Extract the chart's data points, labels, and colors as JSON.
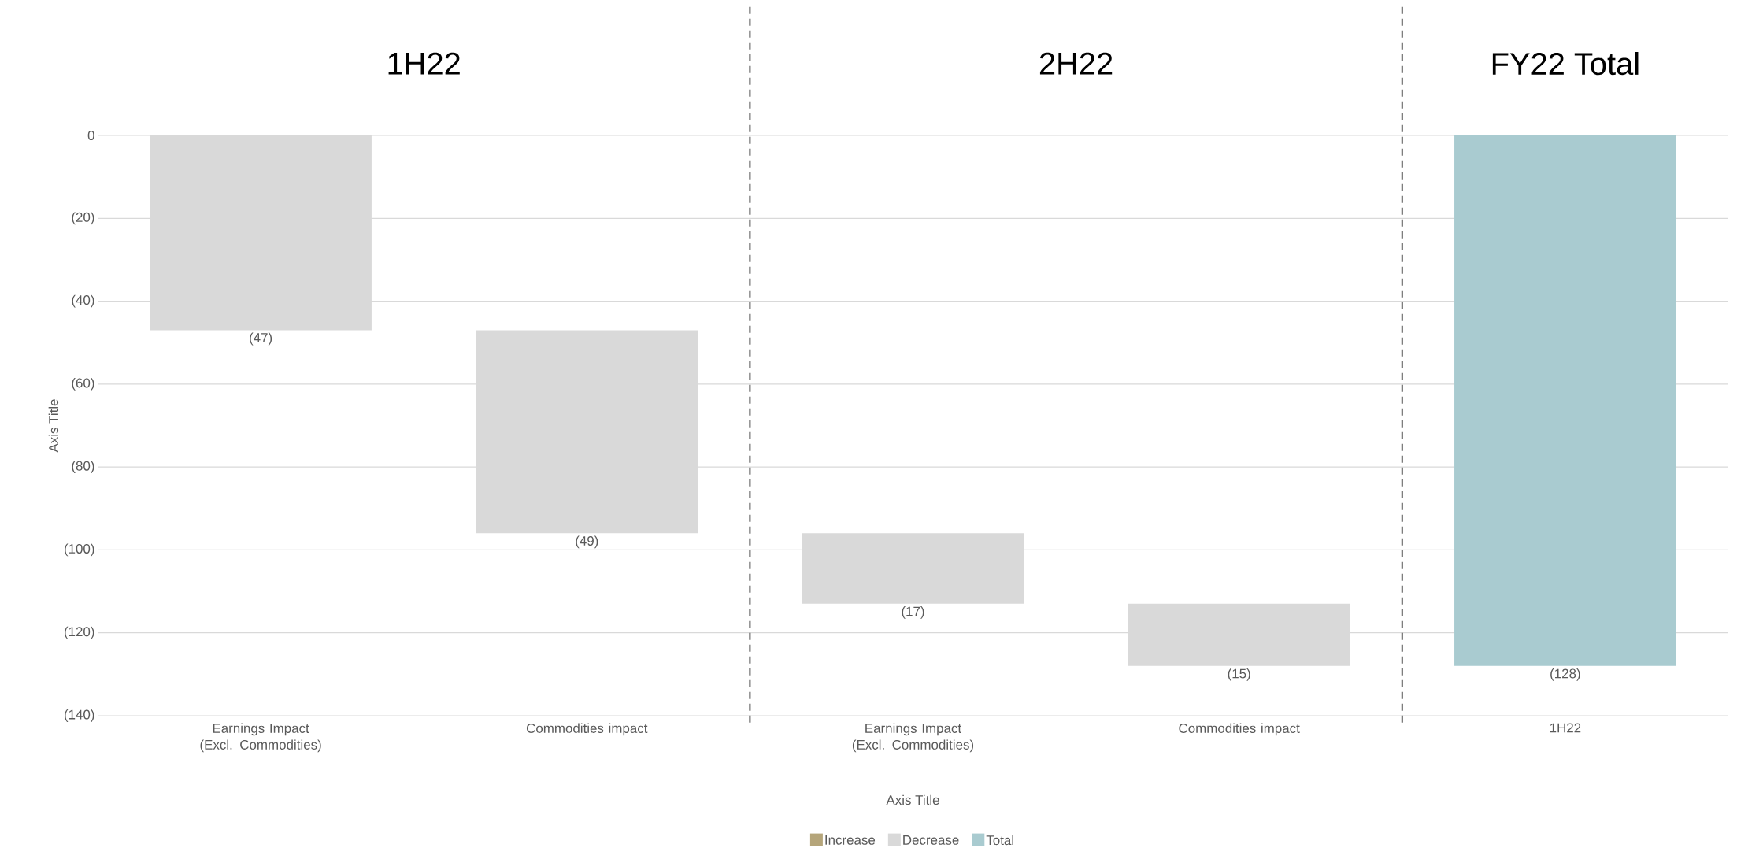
{
  "chart_data": {
    "type": "bar",
    "categories": [
      "Earnings Impact (Excl. Commodities)",
      "Commodities impact",
      "Earnings Impact (Excl. Commodities)",
      "Commodities impact",
      "1H22"
    ],
    "base": [
      0,
      -47,
      -96,
      -113,
      0
    ],
    "values": [
      -47,
      -49,
      -17,
      -15,
      -128
    ],
    "colors": [
      "#d9d9d9",
      "#d9d9d9",
      "#d9d9d9",
      "#d9d9d9",
      "#a9cbd0"
    ],
    "value_labels": [
      "(47)",
      "(49)",
      "(17)",
      "(15)",
      "(128)"
    ],
    "series": [
      {
        "name": "Increase",
        "color": "#b5a57a",
        "values": [
          null,
          null,
          null,
          null,
          null
        ]
      },
      {
        "name": "Decrease",
        "color": "#d9d9d9",
        "values": [
          null,
          null,
          null,
          null,
          null
        ]
      },
      {
        "name": "Total",
        "color": "#a9cbd0",
        "values": [
          null,
          null,
          null,
          null,
          null
        ]
      }
    ],
    "ylim": [
      -140,
      0
    ],
    "yticks": [
      {
        "value": -140,
        "label": "(140)"
      },
      {
        "value": -120,
        "label": "(120)"
      },
      {
        "value": -100,
        "label": "(100)"
      },
      {
        "value": -80,
        "label": "(80)"
      },
      {
        "value": -60,
        "label": "(60)"
      },
      {
        "value": -40,
        "label": "(40)"
      },
      {
        "value": -20,
        "label": "(20)"
      },
      0
    ],
    "xlabel": "Axis Title",
    "ylabel": "Axis Title",
    "annotations": [
      "1H22",
      "2H22",
      "FY22 Total"
    ],
    "grid": "y",
    "legend": "bottom"
  }
}
